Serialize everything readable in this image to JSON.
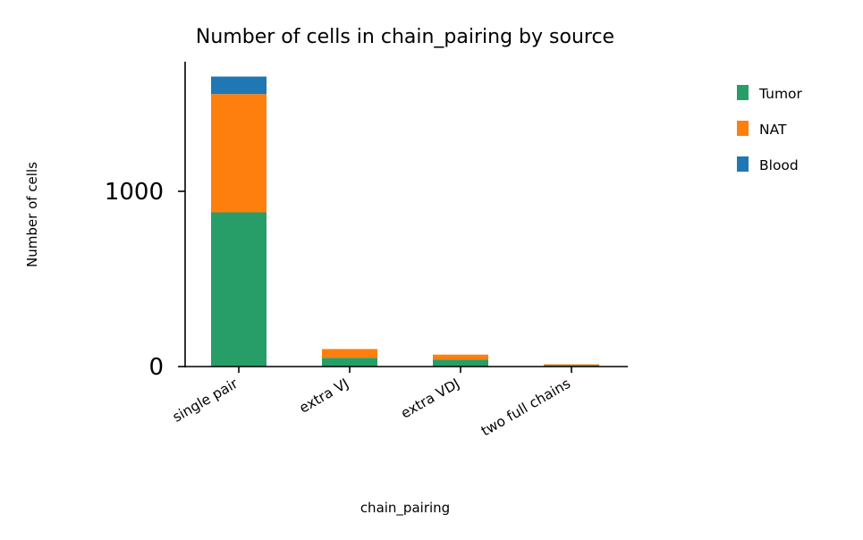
{
  "chart_data": {
    "type": "bar",
    "stacked": true,
    "title": "Number of cells in chain_pairing by source",
    "xlabel": "chain_pairing",
    "ylabel": "Number of cells",
    "categories": [
      "single pair",
      "extra VJ",
      "extra VDJ",
      "two full chains"
    ],
    "series": [
      {
        "name": "Tumor",
        "color": "#279e68",
        "values": [
          880,
          50,
          40,
          8
        ]
      },
      {
        "name": "NAT",
        "color": "#ff7f0e",
        "values": [
          675,
          50,
          28,
          5
        ]
      },
      {
        "name": "Blood",
        "color": "#1f77b4",
        "values": [
          100,
          0,
          0,
          0
        ]
      }
    ],
    "yticks": [
      0,
      1000
    ],
    "ylim": [
      0,
      1740
    ],
    "grid": false,
    "legend_position": "outside-right",
    "legend_order": [
      "Tumor",
      "NAT",
      "Blood"
    ]
  }
}
